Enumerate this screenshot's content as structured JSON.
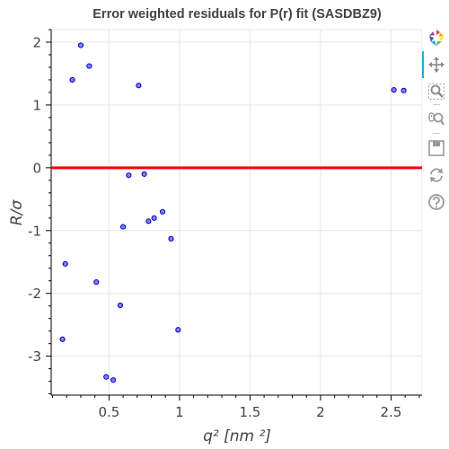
{
  "chart_data": {
    "type": "scatter",
    "title": "Error weighted residuals for P(r) fit (SASDBZ9)",
    "xlabel": "q² [nm ²]",
    "ylabel": "R/σ",
    "xlim": [
      0.09,
      2.72
    ],
    "ylim": [
      -3.62,
      2.2
    ],
    "x_ticks": [
      0.5,
      1,
      1.5,
      2,
      2.5
    ],
    "x_tick_labels": [
      "0.5",
      "1",
      "1.5",
      "2",
      "2.5"
    ],
    "y_ticks": [
      2,
      1,
      0,
      -1,
      -2,
      -3
    ],
    "y_tick_labels": [
      "2",
      "1",
      "0",
      "-1",
      "-2",
      "-3"
    ],
    "grid": true,
    "zero_line": {
      "y": 0,
      "color": "#ff0000"
    },
    "point_color": "#8080ff",
    "point_edge_color": "#0000cc",
    "points": [
      {
        "x": 0.17,
        "y": -2.73
      },
      {
        "x": 0.19,
        "y": -1.53
      },
      {
        "x": 0.24,
        "y": 1.4
      },
      {
        "x": 0.3,
        "y": 1.95
      },
      {
        "x": 0.36,
        "y": 1.62
      },
      {
        "x": 0.41,
        "y": -1.82
      },
      {
        "x": 0.48,
        "y": -3.33
      },
      {
        "x": 0.53,
        "y": -3.38
      },
      {
        "x": 0.58,
        "y": -2.19
      },
      {
        "x": 0.6,
        "y": -0.94
      },
      {
        "x": 0.64,
        "y": -0.12
      },
      {
        "x": 0.71,
        "y": 1.31
      },
      {
        "x": 0.75,
        "y": -0.1
      },
      {
        "x": 0.78,
        "y": -0.85
      },
      {
        "x": 0.82,
        "y": -0.8
      },
      {
        "x": 0.88,
        "y": -0.7
      },
      {
        "x": 0.94,
        "y": -1.13
      },
      {
        "x": 0.99,
        "y": -2.58
      },
      {
        "x": 2.52,
        "y": 1.24
      },
      {
        "x": 2.59,
        "y": 1.23
      }
    ]
  },
  "toolbar": {
    "tools": [
      {
        "name": "bokeh-logo-icon",
        "active": false
      },
      {
        "name": "pan-icon",
        "active": true
      },
      {
        "name": "box-zoom-icon",
        "active": false
      },
      {
        "name": "wheel-zoom-icon",
        "active": false
      },
      {
        "name": "save-icon",
        "active": false
      },
      {
        "name": "reset-icon",
        "active": false
      },
      {
        "name": "help-icon",
        "active": false
      }
    ]
  }
}
